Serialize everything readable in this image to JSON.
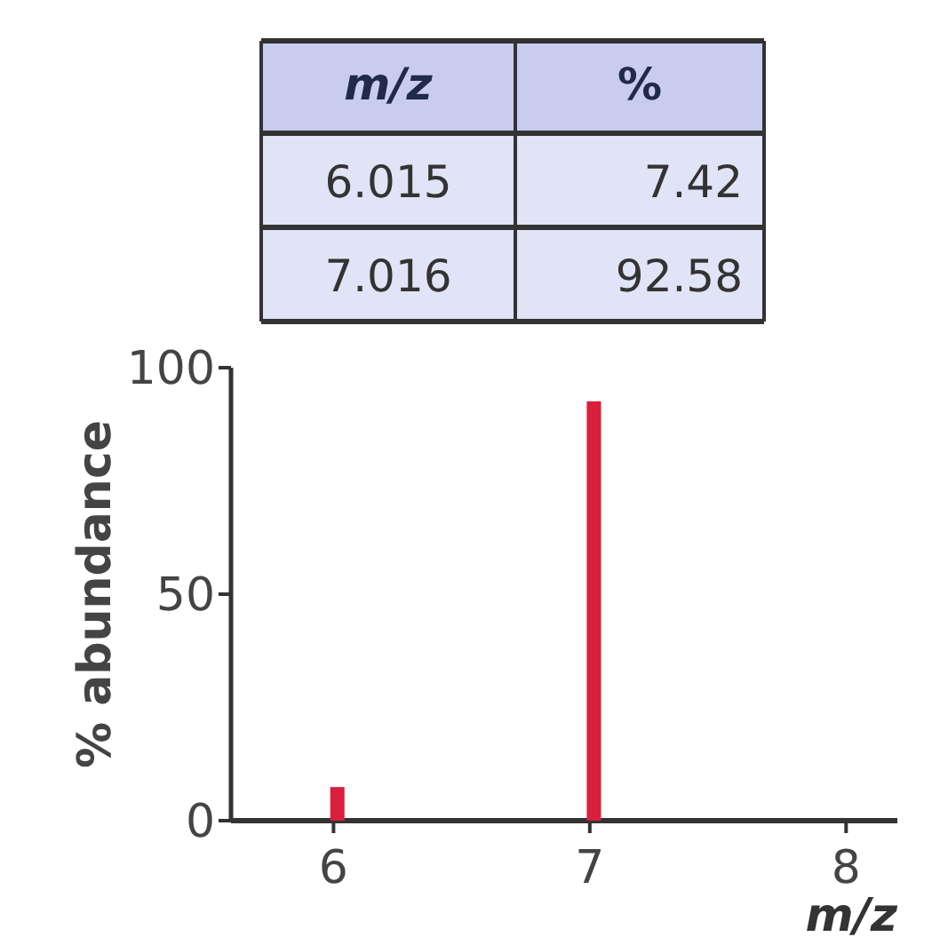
{
  "chart_data": {
    "type": "bar",
    "x": [
      6.015,
      7.016
    ],
    "values": [
      7.42,
      92.58
    ],
    "color": "#d91f3c",
    "ylabel": "% abundance",
    "xlabel": "m/z",
    "xlim": [
      5.6,
      8.2
    ],
    "xticks": [
      6,
      7,
      8
    ],
    "ylim": [
      0,
      100
    ],
    "yticks": [
      0,
      50,
      100
    ],
    "annotations": [
      "m/z",
      "%",
      "6.015",
      "7.42",
      "7.016",
      "92.58"
    ]
  }
}
